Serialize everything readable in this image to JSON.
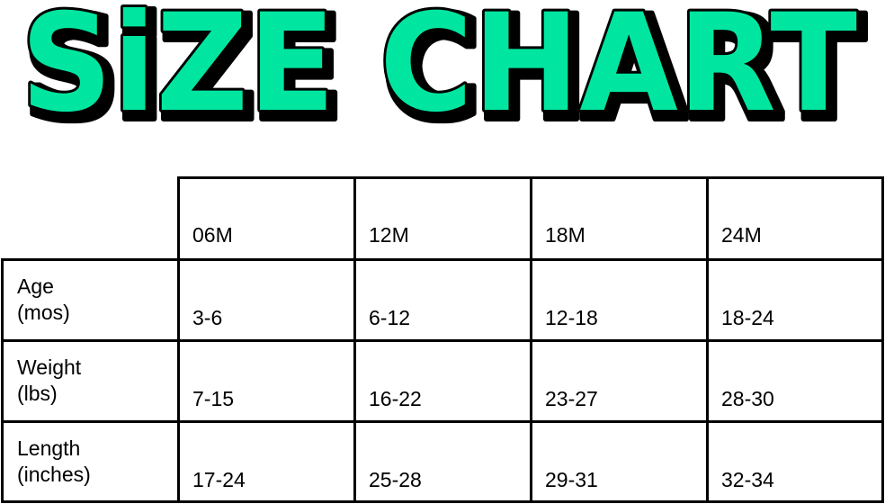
{
  "title": "SiZE CHART",
  "title_color": "#00E6A0",
  "table": {
    "columns": [
      "06M",
      "12M",
      "18M",
      "24M"
    ],
    "rows": [
      {
        "label_line1": "Age",
        "label_line2": "(mos)",
        "values": [
          "3-6",
          "6-12",
          "12-18",
          "18-24"
        ]
      },
      {
        "label_line1": "Weight",
        "label_line2": "(lbs)",
        "values": [
          "7-15",
          "16-22",
          "23-27",
          "28-30"
        ]
      },
      {
        "label_line1": "Length",
        "label_line2": "(inches)",
        "values": [
          "17-24",
          "25-28",
          "29-31",
          "32-34"
        ]
      }
    ]
  }
}
